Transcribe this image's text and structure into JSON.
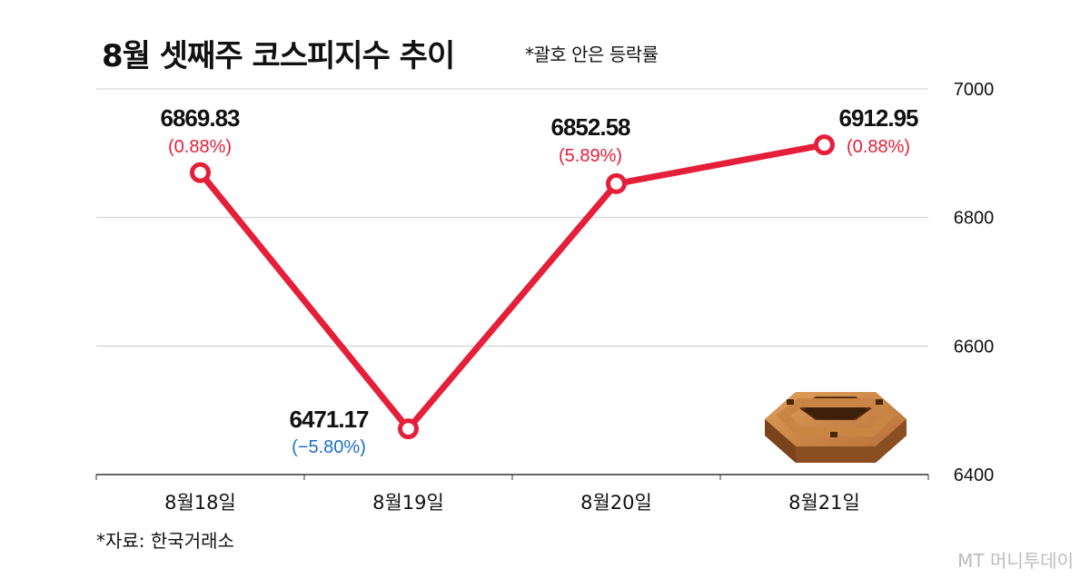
{
  "header": {
    "title": "8월 셋째주 코스피지수 추이",
    "note": "*괄호 안은 등락률"
  },
  "footer": {
    "source": "*자료: 한국거래소",
    "credit": "MT 머니투데이"
  },
  "colors": {
    "line": "#e51f3a",
    "up": "#e51f3a",
    "down": "#1b6fc4",
    "grid": "#cccccc"
  },
  "chart_data": {
    "type": "line",
    "title": "8월 셋째주 코스피지수 추이",
    "categories": [
      "8월18일",
      "8월19일",
      "8월20일",
      "8월21일"
    ],
    "values": [
      6869.83,
      6471.17,
      6852.58,
      6912.95
    ],
    "value_labels": [
      "6869.83",
      "6471.17",
      "6852.58",
      "6912.95"
    ],
    "change_labels": [
      "(0.88%)",
      "(−5.80%)",
      "(5.89%)",
      "(0.88%)"
    ],
    "change_direction": [
      "up",
      "down",
      "up",
      "up"
    ],
    "ylim": [
      6400,
      7000
    ],
    "yticks": [
      7000,
      6800,
      6600,
      6400
    ],
    "ytick_labels": [
      "7000",
      "6800",
      "6600",
      "6400"
    ],
    "y_axis_side": "right",
    "grid": true
  },
  "decoration": {
    "icon": "hexagon-nut-icon"
  }
}
